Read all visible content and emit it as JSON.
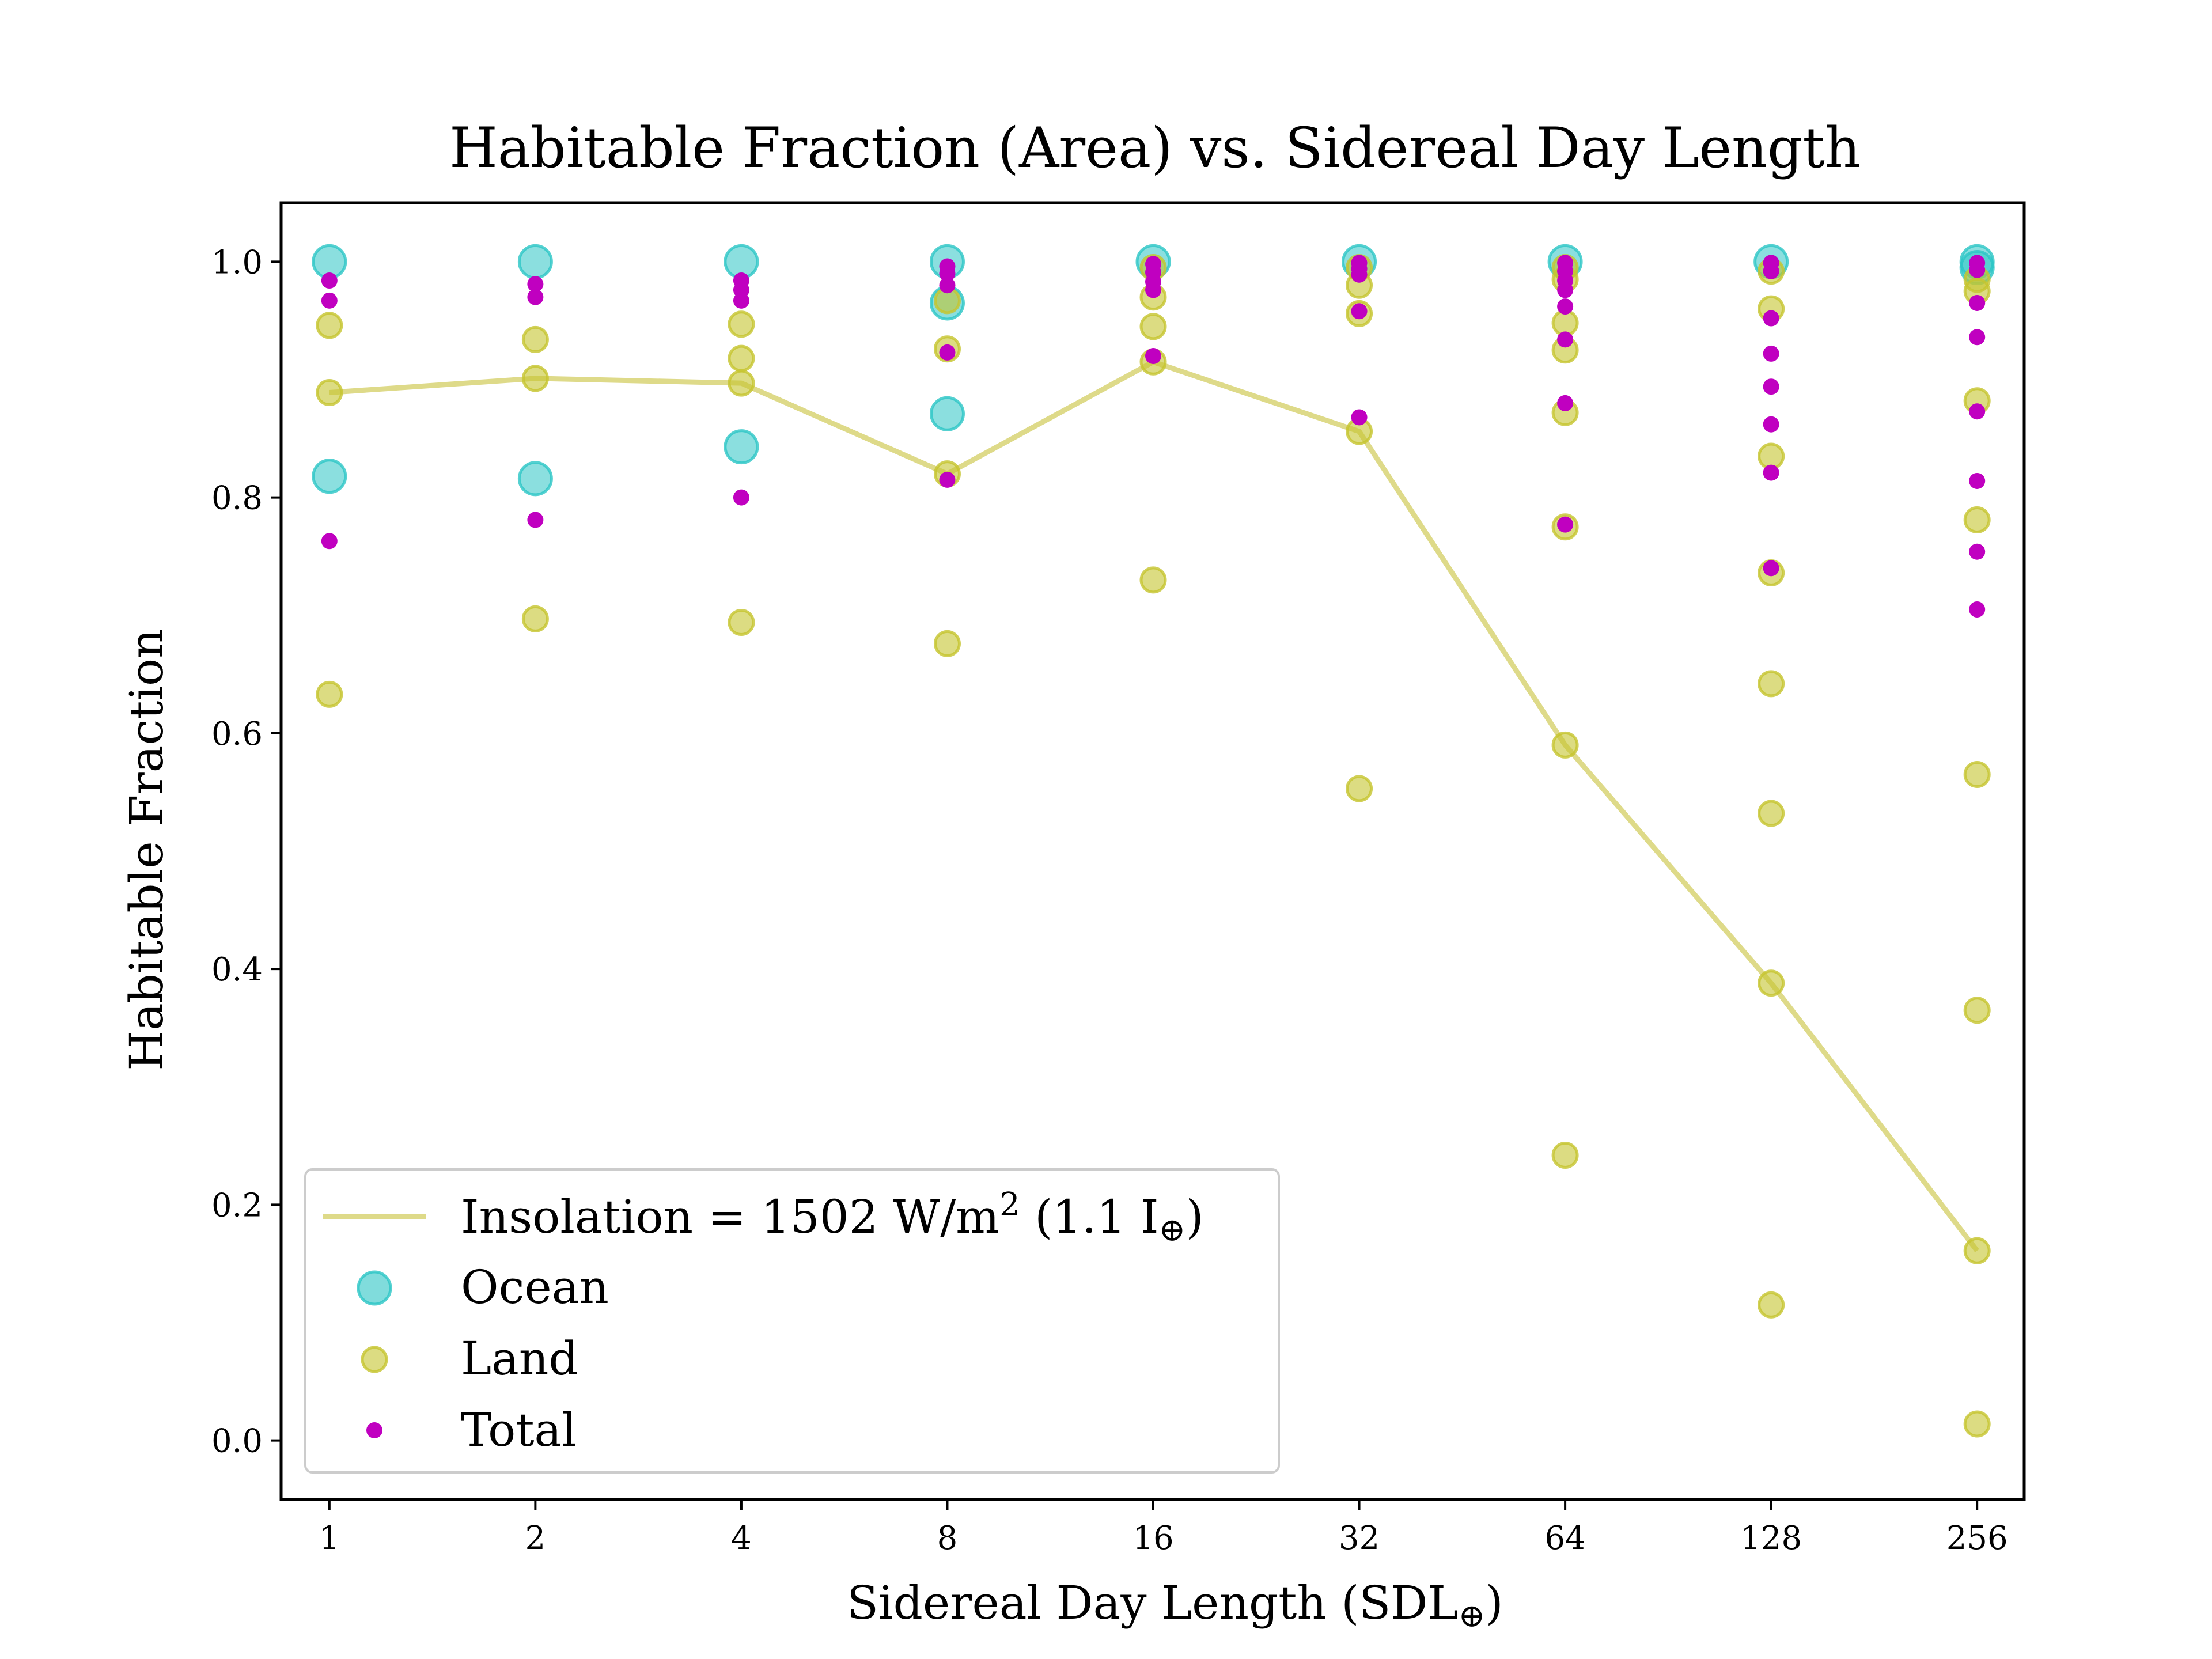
{
  "chart_data": {
    "type": "scatter",
    "title": "Habitable Fraction (Area) vs. Sidereal Day Length",
    "xlabel": "Sidereal Day Length (SDL⊕)",
    "ylabel": "Habitable Fraction",
    "x_scale": "log2",
    "xlim": [
      0.85,
      300
    ],
    "ylim": [
      -0.05,
      1.05
    ],
    "x_ticks": [
      1,
      2,
      4,
      8,
      16,
      32,
      64,
      128,
      256
    ],
    "x_tick_labels": [
      "1",
      "2",
      "4",
      "8",
      "16",
      "32",
      "64",
      "128",
      "256"
    ],
    "y_ticks": [
      0.0,
      0.2,
      0.4,
      0.6,
      0.8,
      1.0
    ],
    "y_tick_labels": [
      "0.0",
      "0.2",
      "0.4",
      "0.6",
      "0.8",
      "1.0"
    ],
    "grid": false,
    "legend_placement": "lower-left",
    "colors": {
      "line": "#c8c23a",
      "ocean": "#2cc5c5",
      "land": "#c5c42e",
      "total": "#c000c0"
    },
    "series": [
      {
        "name": "Insolation = 1502 W/m² (1.1 I⊕)",
        "kind": "line",
        "x": [
          1,
          2,
          4,
          8,
          16,
          32,
          64,
          128,
          256
        ],
        "y": [
          0.889,
          0.901,
          0.897,
          0.82,
          0.915,
          0.856,
          0.59,
          0.388,
          0.161
        ]
      },
      {
        "name": "Ocean",
        "kind": "scatter",
        "points": [
          [
            1,
            1.0
          ],
          [
            1,
            0.818
          ],
          [
            2,
            1.0
          ],
          [
            2,
            0.816
          ],
          [
            4,
            1.0
          ],
          [
            4,
            0.843
          ],
          [
            8,
            1.0
          ],
          [
            8,
            0.965
          ],
          [
            8,
            0.871
          ],
          [
            16,
            1.0
          ],
          [
            32,
            1.0
          ],
          [
            64,
            1.0
          ],
          [
            128,
            1.0
          ],
          [
            256,
            1.0
          ],
          [
            256,
            0.995
          ]
        ]
      },
      {
        "name": "Land",
        "kind": "scatter",
        "points": [
          [
            1,
            0.946
          ],
          [
            1,
            0.889
          ],
          [
            1,
            0.633
          ],
          [
            2,
            0.934
          ],
          [
            2,
            0.901
          ],
          [
            2,
            0.697
          ],
          [
            4,
            0.947
          ],
          [
            4,
            0.918
          ],
          [
            4,
            0.897
          ],
          [
            4,
            0.694
          ],
          [
            8,
            0.967
          ],
          [
            8,
            0.926
          ],
          [
            8,
            0.82
          ],
          [
            8,
            0.676
          ],
          [
            16,
            0.995
          ],
          [
            16,
            0.97
          ],
          [
            16,
            0.945
          ],
          [
            16,
            0.915
          ],
          [
            16,
            0.73
          ],
          [
            32,
            0.995
          ],
          [
            32,
            0.98
          ],
          [
            32,
            0.956
          ],
          [
            32,
            0.856
          ],
          [
            32,
            0.553
          ],
          [
            64,
            0.995
          ],
          [
            64,
            0.985
          ],
          [
            64,
            0.948
          ],
          [
            64,
            0.925
          ],
          [
            64,
            0.872
          ],
          [
            64,
            0.775
          ],
          [
            64,
            0.59
          ],
          [
            64,
            0.242
          ],
          [
            128,
            0.992
          ],
          [
            128,
            0.96
          ],
          [
            128,
            0.835
          ],
          [
            128,
            0.736
          ],
          [
            128,
            0.642
          ],
          [
            128,
            0.532
          ],
          [
            128,
            0.388
          ],
          [
            128,
            0.115
          ],
          [
            256,
            0.985
          ],
          [
            256,
            0.975
          ],
          [
            256,
            0.882
          ],
          [
            256,
            0.781
          ],
          [
            256,
            0.565
          ],
          [
            256,
            0.365
          ],
          [
            256,
            0.161
          ],
          [
            256,
            0.014
          ]
        ]
      },
      {
        "name": "Total",
        "kind": "scatter",
        "points": [
          [
            1,
            0.984
          ],
          [
            1,
            0.967
          ],
          [
            1,
            0.763
          ],
          [
            2,
            0.981
          ],
          [
            2,
            0.97
          ],
          [
            2,
            0.781
          ],
          [
            4,
            0.984
          ],
          [
            4,
            0.976
          ],
          [
            4,
            0.967
          ],
          [
            4,
            0.8
          ],
          [
            8,
            0.996
          ],
          [
            8,
            0.99
          ],
          [
            8,
            0.98
          ],
          [
            8,
            0.923
          ],
          [
            8,
            0.815
          ],
          [
            16,
            0.998
          ],
          [
            16,
            0.991
          ],
          [
            16,
            0.983
          ],
          [
            16,
            0.976
          ],
          [
            16,
            0.92
          ],
          [
            32,
            0.999
          ],
          [
            32,
            0.994
          ],
          [
            32,
            0.989
          ],
          [
            32,
            0.958
          ],
          [
            32,
            0.868
          ],
          [
            64,
            0.999
          ],
          [
            64,
            0.992
          ],
          [
            64,
            0.984
          ],
          [
            64,
            0.976
          ],
          [
            64,
            0.962
          ],
          [
            64,
            0.934
          ],
          [
            64,
            0.88
          ],
          [
            64,
            0.777
          ],
          [
            128,
            0.999
          ],
          [
            128,
            0.992
          ],
          [
            128,
            0.952
          ],
          [
            128,
            0.922
          ],
          [
            128,
            0.894
          ],
          [
            128,
            0.862
          ],
          [
            128,
            0.821
          ],
          [
            128,
            0.74
          ],
          [
            256,
            0.999
          ],
          [
            256,
            0.993
          ],
          [
            256,
            0.965
          ],
          [
            256,
            0.936
          ],
          [
            256,
            0.873
          ],
          [
            256,
            0.814
          ],
          [
            256,
            0.754
          ],
          [
            256,
            0.705
          ]
        ]
      }
    ],
    "legend": {
      "line_prefix": "Insolation = 1502 W/m",
      "line_sup": "2",
      "line_mid": " (1.1 I",
      "line_sub": "⊕",
      "line_suffix": ")",
      "ocean": "Ocean",
      "land": "Land",
      "total": "Total"
    },
    "xlabel_parts": {
      "main": "Sidereal Day Length (SDL",
      "sub": "⊕",
      "end": ")"
    }
  }
}
